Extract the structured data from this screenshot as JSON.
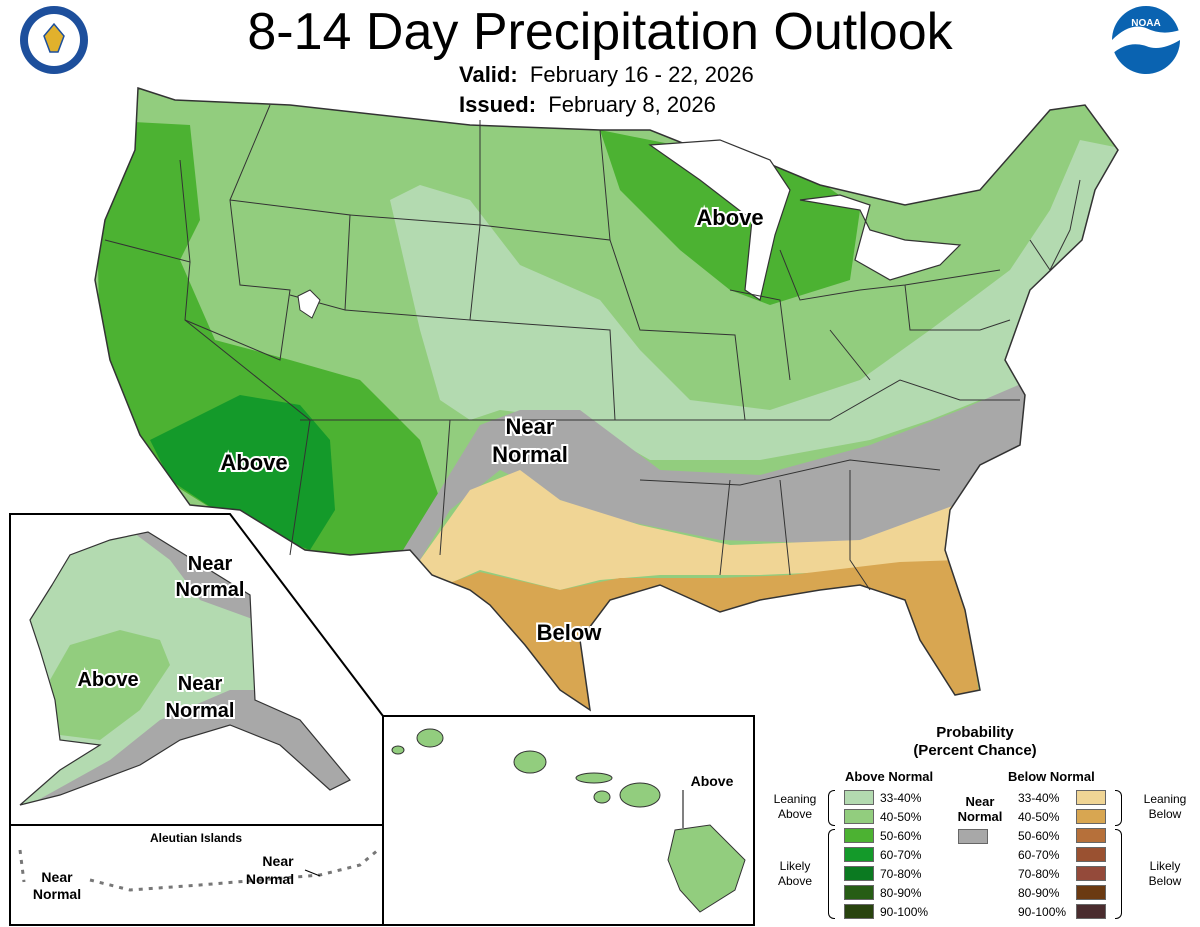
{
  "header": {
    "title": "8-14 Day Precipitation Outlook",
    "valid_label": "Valid:",
    "valid_value": "February 16 - 22, 2026",
    "issued_label": "Issued:",
    "issued_value": "February 8, 2026"
  },
  "logos": {
    "left": "department-of-commerce-seal",
    "right": "noaa-logo",
    "noaa_text": "NOAA"
  },
  "map_labels": {
    "conus_above_west": "Above",
    "conus_above_north": "Above",
    "conus_near_normal": [
      "Near",
      "Normal"
    ],
    "conus_below": "Below",
    "alaska_near_normal_north": [
      "Near",
      "Normal"
    ],
    "alaska_above": "Above",
    "alaska_near_normal_south": [
      "Near",
      "Normal"
    ],
    "aleutian_title": "Aleutian Islands",
    "aleutian_near_normal_west": [
      "Near",
      "Normal"
    ],
    "aleutian_near_normal_east": [
      "Near",
      "Normal"
    ],
    "hawaii_above": "Above"
  },
  "legend": {
    "title_line1": "Probability",
    "title_line2": "(Percent Chance)",
    "above_header": "Above Normal",
    "below_header": "Below Normal",
    "near_header": [
      "Near",
      "Normal"
    ],
    "near_color": "#a8a8a8",
    "above_items": [
      {
        "label": "33-40%",
        "color": "#b3dab0"
      },
      {
        "label": "40-50%",
        "color": "#92cd7e"
      },
      {
        "label": "50-60%",
        "color": "#4cb232"
      },
      {
        "label": "60-70%",
        "color": "#149a2a"
      },
      {
        "label": "70-80%",
        "color": "#0b7a21"
      },
      {
        "label": "80-90%",
        "color": "#275d15"
      },
      {
        "label": "90-100%",
        "color": "#28430e"
      }
    ],
    "below_items": [
      {
        "label": "33-40%",
        "color": "#f0d595"
      },
      {
        "label": "40-50%",
        "color": "#d8a651"
      },
      {
        "label": "50-60%",
        "color": "#b6703a"
      },
      {
        "label": "60-70%",
        "color": "#9a5131"
      },
      {
        "label": "70-80%",
        "color": "#944a3a"
      },
      {
        "label": "80-90%",
        "color": "#6b3a12"
      },
      {
        "label": "90-100%",
        "color": "#4a2c2e"
      }
    ],
    "leaning_above": [
      "Leaning",
      "Above"
    ],
    "likely_above": [
      "Likely",
      "Above"
    ],
    "leaning_below": [
      "Leaning",
      "Below"
    ],
    "likely_below": [
      "Likely",
      "Below"
    ]
  }
}
